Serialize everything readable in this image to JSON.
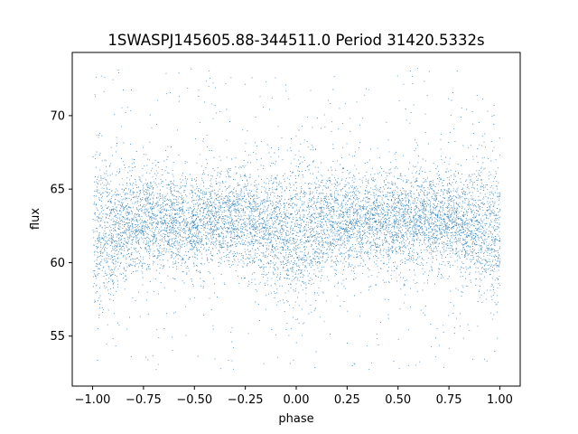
{
  "chart_data": {
    "type": "scatter",
    "title": "1SWASPJ145605.88-344511.0 Period 31420.5332s",
    "xlabel": "phase",
    "ylabel": "flux",
    "xlim": [
      -1.1,
      1.1
    ],
    "ylim": [
      51.6,
      74.3
    ],
    "xticks": [
      -1.0,
      -0.75,
      -0.5,
      -0.25,
      0.0,
      0.25,
      0.5,
      0.75,
      1.0
    ],
    "xtick_labels": [
      "−1.00",
      "−0.75",
      "−0.50",
      "−0.25",
      "0.00",
      "0.25",
      "0.50",
      "0.75",
      "1.00"
    ],
    "yticks": [
      55,
      60,
      65,
      70
    ],
    "ytick_labels": [
      "55",
      "60",
      "65",
      "70"
    ],
    "marker_color": "#1f77b4",
    "grid": false,
    "description": "Dense phase-folded light curve; band centered near flux 62.5 (core ~59-66), range ~52.7-73.3 across phase -1 to 1, with eclipse-like dips near phase -1, 0 and 1 (core minimum ~57.5).",
    "series": [
      {
        "profile_phase": [
          -1.0,
          -0.9,
          -0.8,
          -0.7,
          -0.6,
          -0.5,
          -0.4,
          -0.3,
          -0.2,
          -0.1,
          0.0,
          0.1,
          0.2,
          0.3,
          0.4,
          0.5,
          0.6,
          0.7,
          0.8,
          0.9,
          1.0
        ],
        "profile_center_flux": [
          61.5,
          62.3,
          62.8,
          63.0,
          62.9,
          62.7,
          62.9,
          63.0,
          62.8,
          62.3,
          61.4,
          62.3,
          62.8,
          63.0,
          62.9,
          62.7,
          62.9,
          63.0,
          62.8,
          62.3,
          61.5
        ],
        "profile_lower_core_flux": [
          57.8,
          59.2,
          60.0,
          60.4,
          60.3,
          60.0,
          60.3,
          60.4,
          60.0,
          58.8,
          57.5,
          58.8,
          60.0,
          60.4,
          60.3,
          60.0,
          60.3,
          60.4,
          60.0,
          59.2,
          57.8
        ],
        "profile_upper_core_flux": [
          66.5,
          66.0,
          65.7,
          65.6,
          65.6,
          65.5,
          65.6,
          65.6,
          65.7,
          65.8,
          65.6,
          65.8,
          65.7,
          65.6,
          65.6,
          65.5,
          65.6,
          65.6,
          65.7,
          66.0,
          66.5
        ],
        "flux_min": 52.7,
        "flux_max": 73.3
      }
    ]
  }
}
